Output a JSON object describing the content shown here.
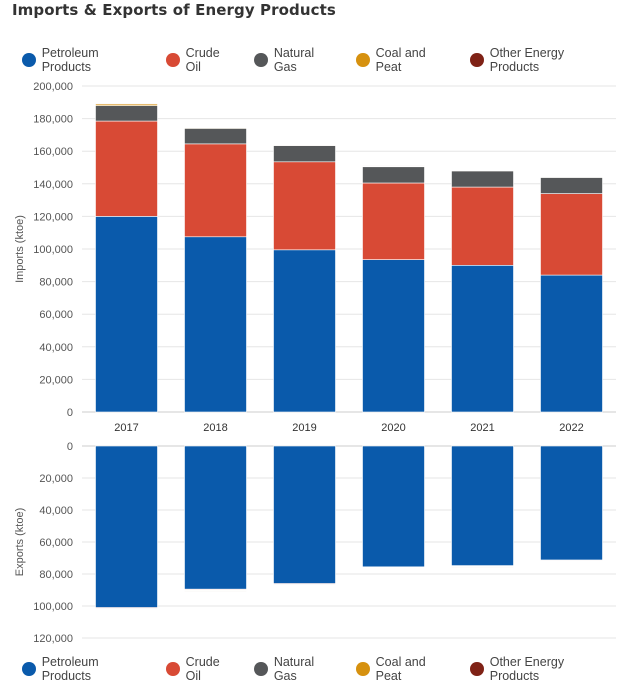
{
  "title": "Imports & Exports of Energy Products",
  "colors": {
    "Petroleum Products": "#0a5aab",
    "Crude Oil": "#d84a35",
    "Natural Gas": "#555759",
    "Coal and Peat": "#d6910f",
    "Other Energy Products": "#7f2216"
  },
  "chart_data": [
    {
      "type": "bar",
      "stacked": true,
      "title": "",
      "ylabel": "Imports (ktoe)",
      "ylim": [
        0,
        200000
      ],
      "yticks": [
        "0",
        "20,000",
        "40,000",
        "60,000",
        "80,000",
        "100,000",
        "120,000",
        "140,000",
        "160,000",
        "180,000",
        "200,000"
      ],
      "categories": [
        "2017",
        "2018",
        "2019",
        "2020",
        "2021",
        "2022"
      ],
      "series": [
        {
          "name": "Petroleum Products",
          "values": [
            120000,
            107500,
            99500,
            93500,
            90000,
            84000
          ]
        },
        {
          "name": "Crude Oil",
          "values": [
            58500,
            57000,
            54000,
            47000,
            48000,
            50000
          ]
        },
        {
          "name": "Natural Gas",
          "values": [
            9500,
            9500,
            10000,
            10000,
            10000,
            10000
          ]
        },
        {
          "name": "Coal and Peat",
          "values": [
            1000,
            500,
            300,
            300,
            200,
            200
          ]
        },
        {
          "name": "Other Energy Products",
          "values": [
            300,
            200,
            200,
            200,
            200,
            200
          ]
        }
      ]
    },
    {
      "type": "bar",
      "stacked": true,
      "inverted": true,
      "title": "",
      "ylabel": "Exports (ktoe)",
      "ylim": [
        0,
        120000
      ],
      "yticks": [
        "0",
        "20,000",
        "40,000",
        "60,000",
        "80,000",
        "100,000",
        "120,000"
      ],
      "categories": [
        "2017",
        "2018",
        "2019",
        "2020",
        "2021",
        "2022"
      ],
      "series": [
        {
          "name": "Petroleum Products",
          "values": [
            101000,
            89500,
            86000,
            75500,
            74800,
            71300
          ]
        },
        {
          "name": "Crude Oil",
          "values": [
            500,
            500,
            500,
            300,
            300,
            300
          ]
        },
        {
          "name": "Natural Gas",
          "values": [
            200,
            200,
            200,
            200,
            200,
            200
          ]
        },
        {
          "name": "Coal and Peat",
          "values": [
            0,
            100,
            0,
            0,
            0,
            0
          ]
        },
        {
          "name": "Other Energy Products",
          "values": [
            300,
            300,
            300,
            200,
            200,
            200
          ]
        }
      ]
    }
  ],
  "legend_top": [
    "Petroleum Products",
    "Crude Oil",
    "Natural Gas",
    "Coal and Peat",
    "Other Energy Products"
  ],
  "legend_bottom": [
    "Petroleum Products",
    "Crude Oil",
    "Natural Gas",
    "Coal and Peat",
    "Other Energy Products"
  ]
}
